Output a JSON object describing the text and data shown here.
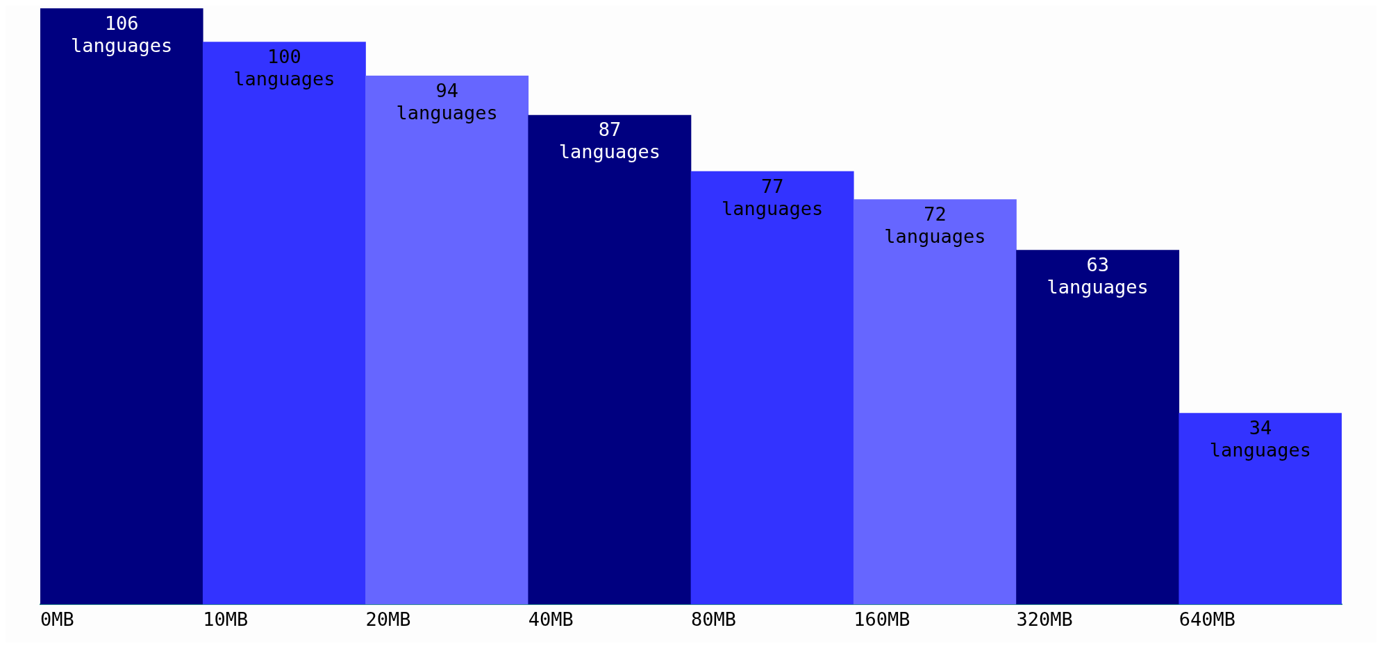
{
  "chart_data": {
    "type": "bar",
    "categories": [
      "0MB",
      "10MB",
      "20MB",
      "40MB",
      "80MB",
      "160MB",
      "320MB",
      "640MB"
    ],
    "values": [
      106,
      100,
      94,
      87,
      77,
      72,
      63,
      34
    ],
    "colors": [
      "#000080",
      "#3333ff",
      "#6666ff",
      "#000080",
      "#3333ff",
      "#6666ff",
      "#000080",
      "#3333ff"
    ],
    "value_labels": [
      "106 languages",
      "100 languages",
      "94 languages",
      "87 languages",
      "77 languages",
      "72 languages",
      "63 languages",
      "34 languages"
    ],
    "tick_labels": "x",
    "grid": false,
    "legend": false
  }
}
